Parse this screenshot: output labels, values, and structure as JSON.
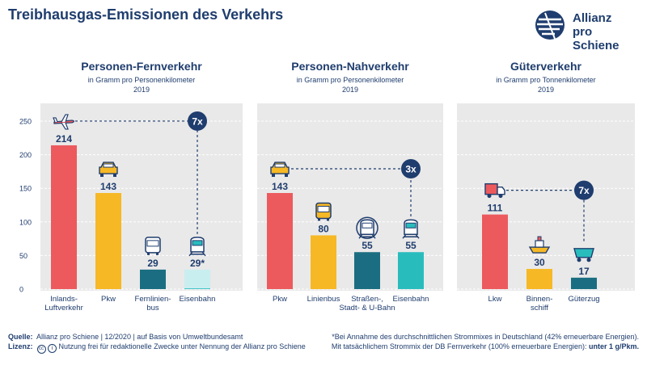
{
  "header": {
    "title": "Treibhausgas-Emissionen des Verkehrs",
    "logo_line1": "Allianz",
    "logo_line2": "pro Schiene"
  },
  "colors": {
    "navy": "#1f3d6e",
    "red": "#ec5a5e",
    "yellow": "#f6b825",
    "teal": "#1b6e82",
    "turquoise": "#29bcbd",
    "light_turquoise": "#c9eef0",
    "panel_bg": "#e9e9e9"
  },
  "chart_data": [
    {
      "type": "bar",
      "title": "Personen-Fernverkehr",
      "subtitle": "in Gramm pro Personenkilometer",
      "year": "2019",
      "ylim": [
        0,
        250
      ],
      "yticks": [
        0,
        50,
        100,
        150,
        200,
        250
      ],
      "categories": [
        [
          "Inlands-",
          "Luftverkehr"
        ],
        [
          "Pkw"
        ],
        [
          "Fernlinien-",
          "bus"
        ],
        [
          "Eisenbahn"
        ]
      ],
      "values": [
        214,
        143,
        29,
        29
      ],
      "value_labels": [
        "214",
        "143",
        "29",
        "29*"
      ],
      "bar_colors": [
        "red",
        "yellow",
        "teal",
        "light_turquoise"
      ],
      "icons": [
        "airplane-icon",
        "car-icon",
        "coach-bus-icon",
        "train-icon"
      ],
      "real_value_note": 1,
      "comparison_label": "7x",
      "comparison_between": [
        0,
        3
      ]
    },
    {
      "type": "bar",
      "title": "Personen-Nahverkehr",
      "subtitle": "in Gramm pro Personenkilometer",
      "year": "2019",
      "ylim": [
        0,
        250
      ],
      "categories": [
        [
          "Pkw"
        ],
        [
          "Linienbus"
        ],
        [
          "Straßen-,",
          "Stadt- & U-Bahn"
        ],
        [
          "Eisenbahn"
        ]
      ],
      "values": [
        143,
        80,
        55,
        55
      ],
      "value_labels": [
        "143",
        "80",
        "55",
        "55"
      ],
      "bar_colors": [
        "red",
        "yellow",
        "teal",
        "turquoise"
      ],
      "icons": [
        "car-icon",
        "city-bus-icon",
        "tram-icon",
        "train-icon"
      ],
      "comparison_label": "3x",
      "comparison_between": [
        0,
        3
      ]
    },
    {
      "type": "bar",
      "title": "Güterverkehr",
      "subtitle": "in Gramm pro Tonnenkilometer",
      "year": "2019",
      "ylim": [
        0,
        250
      ],
      "categories": [
        [
          "Lkw"
        ],
        [
          "Binnen-",
          "schiff"
        ],
        [
          "Güterzug"
        ]
      ],
      "values": [
        111,
        30,
        17
      ],
      "value_labels": [
        "111",
        "30",
        "17"
      ],
      "bar_colors": [
        "red",
        "yellow",
        "teal"
      ],
      "icons": [
        "truck-icon",
        "ship-icon",
        "freight-wagon-icon"
      ],
      "comparison_label": "7x",
      "comparison_between": [
        0,
        2
      ]
    }
  ],
  "footer": {
    "source_label": "Quelle:",
    "source_text": "Allianz pro Schiene | 12/2020 | auf Basis von Umweltbundesamt",
    "license_label": "Lizenz:",
    "license_text": "Nutzung frei für redaktionelle Zwecke unter Nennung der Allianz pro Schiene",
    "note_line1": "*Bei Annahme des durchschnittlichen Strommixes in Deutschland (42% erneuerbare Energien).",
    "note_line2": "Mit tatsächlichem Strommix der DB Fernverkehr (100% erneuerbare Energien):",
    "note_line2_bold": "unter 1 g/Pkm."
  }
}
